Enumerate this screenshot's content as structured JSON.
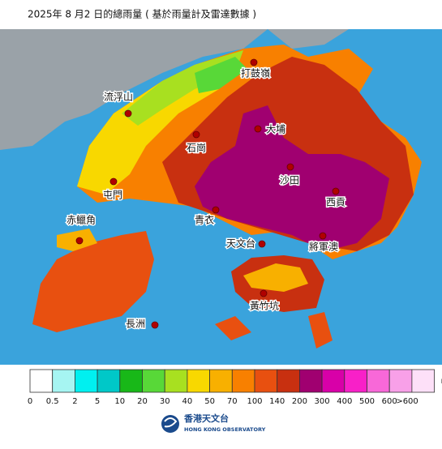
{
  "title": "2025年 8 月2 日的總雨量 ( 基於雨量計及雷達數據 )",
  "places": [
    {
      "name": "打鼓嶺"
    },
    {
      "name": "流浮山"
    },
    {
      "name": "大埔"
    },
    {
      "name": "石崗"
    },
    {
      "name": "沙田"
    },
    {
      "name": "屯門"
    },
    {
      "name": "西貢"
    },
    {
      "name": "青衣"
    },
    {
      "name": "赤鱲角"
    },
    {
      "name": "天文台"
    },
    {
      "name": "將軍澳"
    },
    {
      "name": "黃竹坑"
    },
    {
      "name": "長洲"
    }
  ],
  "legend": {
    "unit": "mm",
    "colors": [
      "#ffffff",
      "#a6f5f2",
      "#00f0f0",
      "#00c8c8",
      "#18b818",
      "#58d838",
      "#a8e020",
      "#f8d800",
      "#f8b000",
      "#f88000",
      "#e85010",
      "#c83010",
      "#a00070",
      "#d800a8",
      "#f820c8",
      "#f868d8",
      "#f8a0e8",
      "#fde0f8"
    ],
    "labels": [
      "0",
      "0.5",
      "2",
      "5",
      "10",
      "20",
      "30",
      "40",
      "50",
      "70",
      "100",
      "140",
      "200",
      "300",
      "400",
      "500",
      "600",
      ">600"
    ]
  },
  "logo": {
    "name": "香港天文台",
    "english": "HONG KONG OBSERVATORY"
  }
}
